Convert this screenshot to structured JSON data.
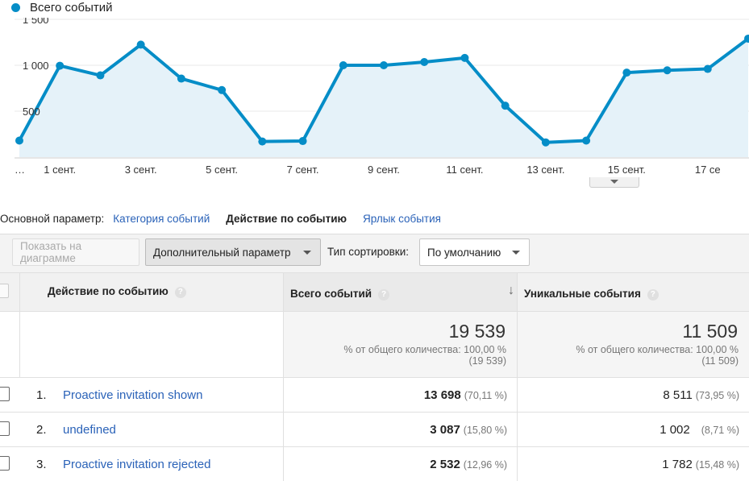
{
  "chart_data": {
    "type": "area",
    "series": [
      {
        "name": "Всего событий",
        "values": [
          180,
          995,
          890,
          1225,
          855,
          730,
          170,
          175,
          1000,
          1000,
          1035,
          1080,
          560,
          160,
          180,
          920,
          945,
          960,
          1290
        ]
      }
    ],
    "x_tick_labels": [
      "…",
      "1 сент.",
      "3 сент.",
      "5 сент.",
      "7 сент.",
      "9 сент.",
      "11 сент.",
      "13 сент.",
      "15 сент.",
      "17 се"
    ],
    "y_tick_labels": [
      "1 500",
      "1 000",
      "500"
    ],
    "y_ticks": [
      1500,
      1000,
      500
    ],
    "ylim": [
      0,
      1500
    ],
    "grid": true,
    "colors": {
      "line": "#058dc7",
      "fill": "#e5f2f9",
      "grid": "#e8e8e8"
    }
  },
  "legend": {
    "label": "Всего событий",
    "color": "#058dc7"
  },
  "dimension_selector": {
    "label": "Основной параметр:",
    "options": [
      "Категория событий",
      "Действие по событию",
      "Ярлык события"
    ],
    "active": "Действие по событию"
  },
  "toolbar": {
    "plot_button": "Показать на диаграмме",
    "secondary_dimension": "Дополнительный параметр",
    "sort_label": "Тип сортировки:",
    "sort_value": "По умолчанию"
  },
  "table": {
    "columns": [
      "Действие по событию",
      "Всего событий",
      "Уникальные события"
    ],
    "help_icon": "?",
    "sort_icon": "↓",
    "totals": {
      "total_events": "19 539",
      "total_events_note": "% от общего количества: 100,00 %",
      "total_events_abs": "(19 539)",
      "unique_events": "11 509",
      "unique_events_note": "% от общего количества: 100,00 %",
      "unique_events_abs": "(11 509)"
    },
    "rows": [
      {
        "index": "1.",
        "name": "Proactive invitation shown",
        "total": "13 698",
        "total_pct": "(70,11 %)",
        "unique": "8 511",
        "unique_pct": "(73,95 %)"
      },
      {
        "index": "2.",
        "name": "undefined",
        "total": "3 087",
        "total_pct": "(15,80 %)",
        "unique": "1 002",
        "unique_pct": "(8,71 %)"
      },
      {
        "index": "3.",
        "name": "Proactive invitation rejected",
        "total": "2 532",
        "total_pct": "(12,96 %)",
        "unique": "1 782",
        "unique_pct": "(15,48 %)"
      }
    ]
  }
}
